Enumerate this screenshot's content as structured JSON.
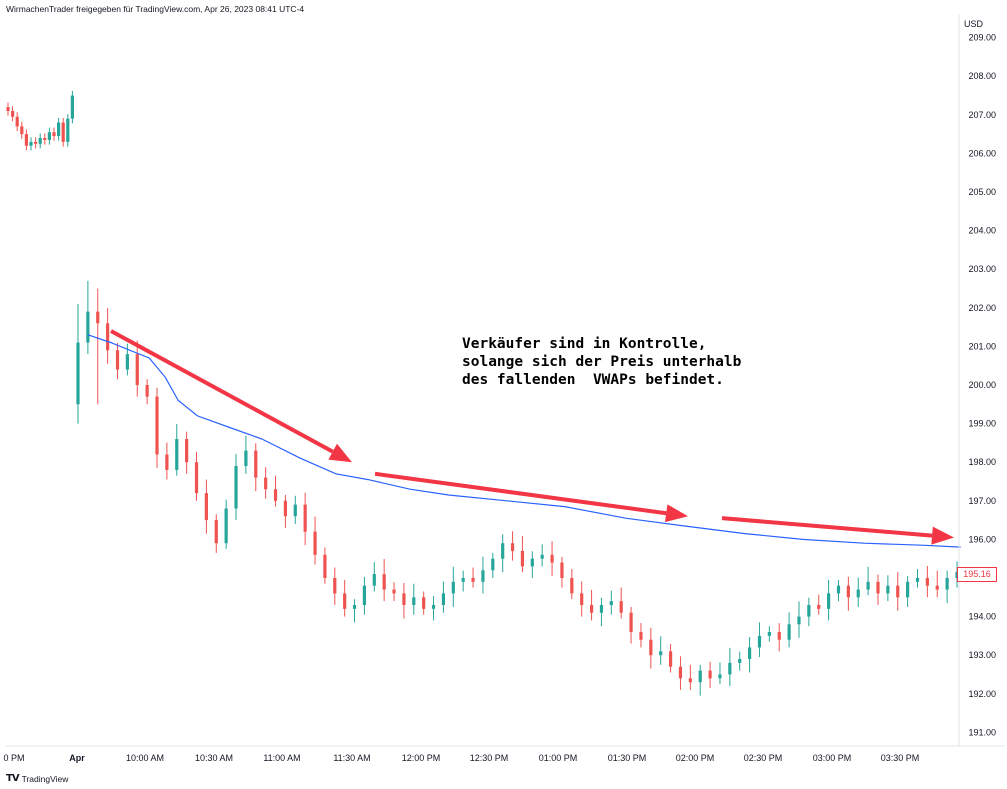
{
  "header": {
    "caption": "WirmachenTrader freigegeben für TradingView.com, Apr 26, 2023 08:41 UTC-4"
  },
  "footer": {
    "brand": "TradingView"
  },
  "annotation": {
    "text": "Verkäufer sind in Kontrolle,\nsolange sich der Preis unterhalb\ndes fallenden  VWAPs befindet."
  },
  "colors": {
    "up": "#26a69a",
    "down": "#ef5350",
    "vwap": "#2962ff",
    "arrow": "#f23645",
    "price_badge": "#f23645"
  },
  "chart_data": {
    "type": "candlestick",
    "currency": "USD",
    "ylim": [
      190.75,
      209.25
    ],
    "y_ticks": [
      "191.00",
      "192.00",
      "193.00",
      "194.00",
      "195.00",
      "196.00",
      "197.00",
      "198.00",
      "199.00",
      "200.00",
      "201.00",
      "202.00",
      "203.00",
      "204.00",
      "205.00",
      "206.00",
      "207.00",
      "208.00",
      "209.00"
    ],
    "x_ticks": [
      "0 PM",
      "Apr",
      "10:00 AM",
      "10:30 AM",
      "11:00 AM",
      "11:30 AM",
      "12:00 PM",
      "12:30 PM",
      "01:00 PM",
      "01:30 PM",
      "02:00 PM",
      "02:30 PM",
      "03:00 PM",
      "03:30 PM"
    ],
    "last_price": "195.16",
    "prev_session_close": [
      207.1,
      206.95,
      206.7,
      206.5,
      206.2,
      206.3,
      206.25,
      206.4,
      206.35,
      206.55,
      206.45,
      206.8,
      206.3,
      206.9,
      207.5
    ],
    "session_path": [
      201.1,
      201.9,
      201.6,
      200.9,
      200.4,
      200.8,
      200.0,
      199.7,
      198.2,
      197.8,
      198.6,
      198.0,
      197.2,
      196.5,
      195.9,
      196.8,
      197.9,
      198.3,
      197.6,
      197.3,
      197.0,
      196.6,
      196.9,
      196.2,
      195.6,
      195.0,
      194.6,
      194.2,
      194.3,
      194.8,
      195.1,
      194.7,
      194.6,
      194.3,
      194.5,
      194.2,
      194.3,
      194.6,
      194.9,
      195.0,
      194.9,
      195.2,
      195.5,
      195.9,
      195.7,
      195.3,
      195.5,
      195.6,
      195.4,
      195.0,
      194.6,
      194.3,
      194.1,
      194.3,
      194.4,
      194.1,
      193.6,
      193.4,
      193.0,
      193.1,
      192.7,
      192.4,
      192.3,
      192.6,
      192.4,
      192.5,
      192.8,
      192.9,
      193.2,
      193.5,
      193.6,
      193.4,
      193.8,
      194.0,
      194.3,
      194.2,
      194.6,
      194.8,
      194.5,
      194.7,
      194.9,
      194.6,
      194.8,
      194.5,
      194.9,
      195.0,
      194.8,
      194.7,
      195.0,
      195.16
    ],
    "vwap": [
      [
        201.0,
        201.3
      ],
      [
        7,
        201.1
      ],
      [
        19,
        200.7
      ],
      [
        24,
        200.2
      ],
      [
        28,
        199.6
      ],
      [
        34,
        199.2
      ],
      [
        44,
        198.9
      ],
      [
        54,
        198.6
      ],
      [
        66,
        198.1
      ],
      [
        77,
        197.7
      ],
      [
        87,
        197.55
      ],
      [
        100,
        197.3
      ],
      [
        112,
        197.15
      ],
      [
        130,
        197.0
      ],
      [
        148,
        196.85
      ],
      [
        167,
        196.55
      ],
      [
        185,
        196.35
      ],
      [
        204,
        196.15
      ],
      [
        222,
        196.0
      ],
      [
        241,
        195.9
      ],
      [
        259,
        195.85
      ],
      [
        271,
        195.8
      ]
    ],
    "arrows": [
      {
        "from_price": 201.4,
        "to_price": 198.0
      },
      {
        "from_price": 197.7,
        "to_price": 196.6
      },
      {
        "from_price": 196.55,
        "to_price": 196.05
      }
    ]
  }
}
